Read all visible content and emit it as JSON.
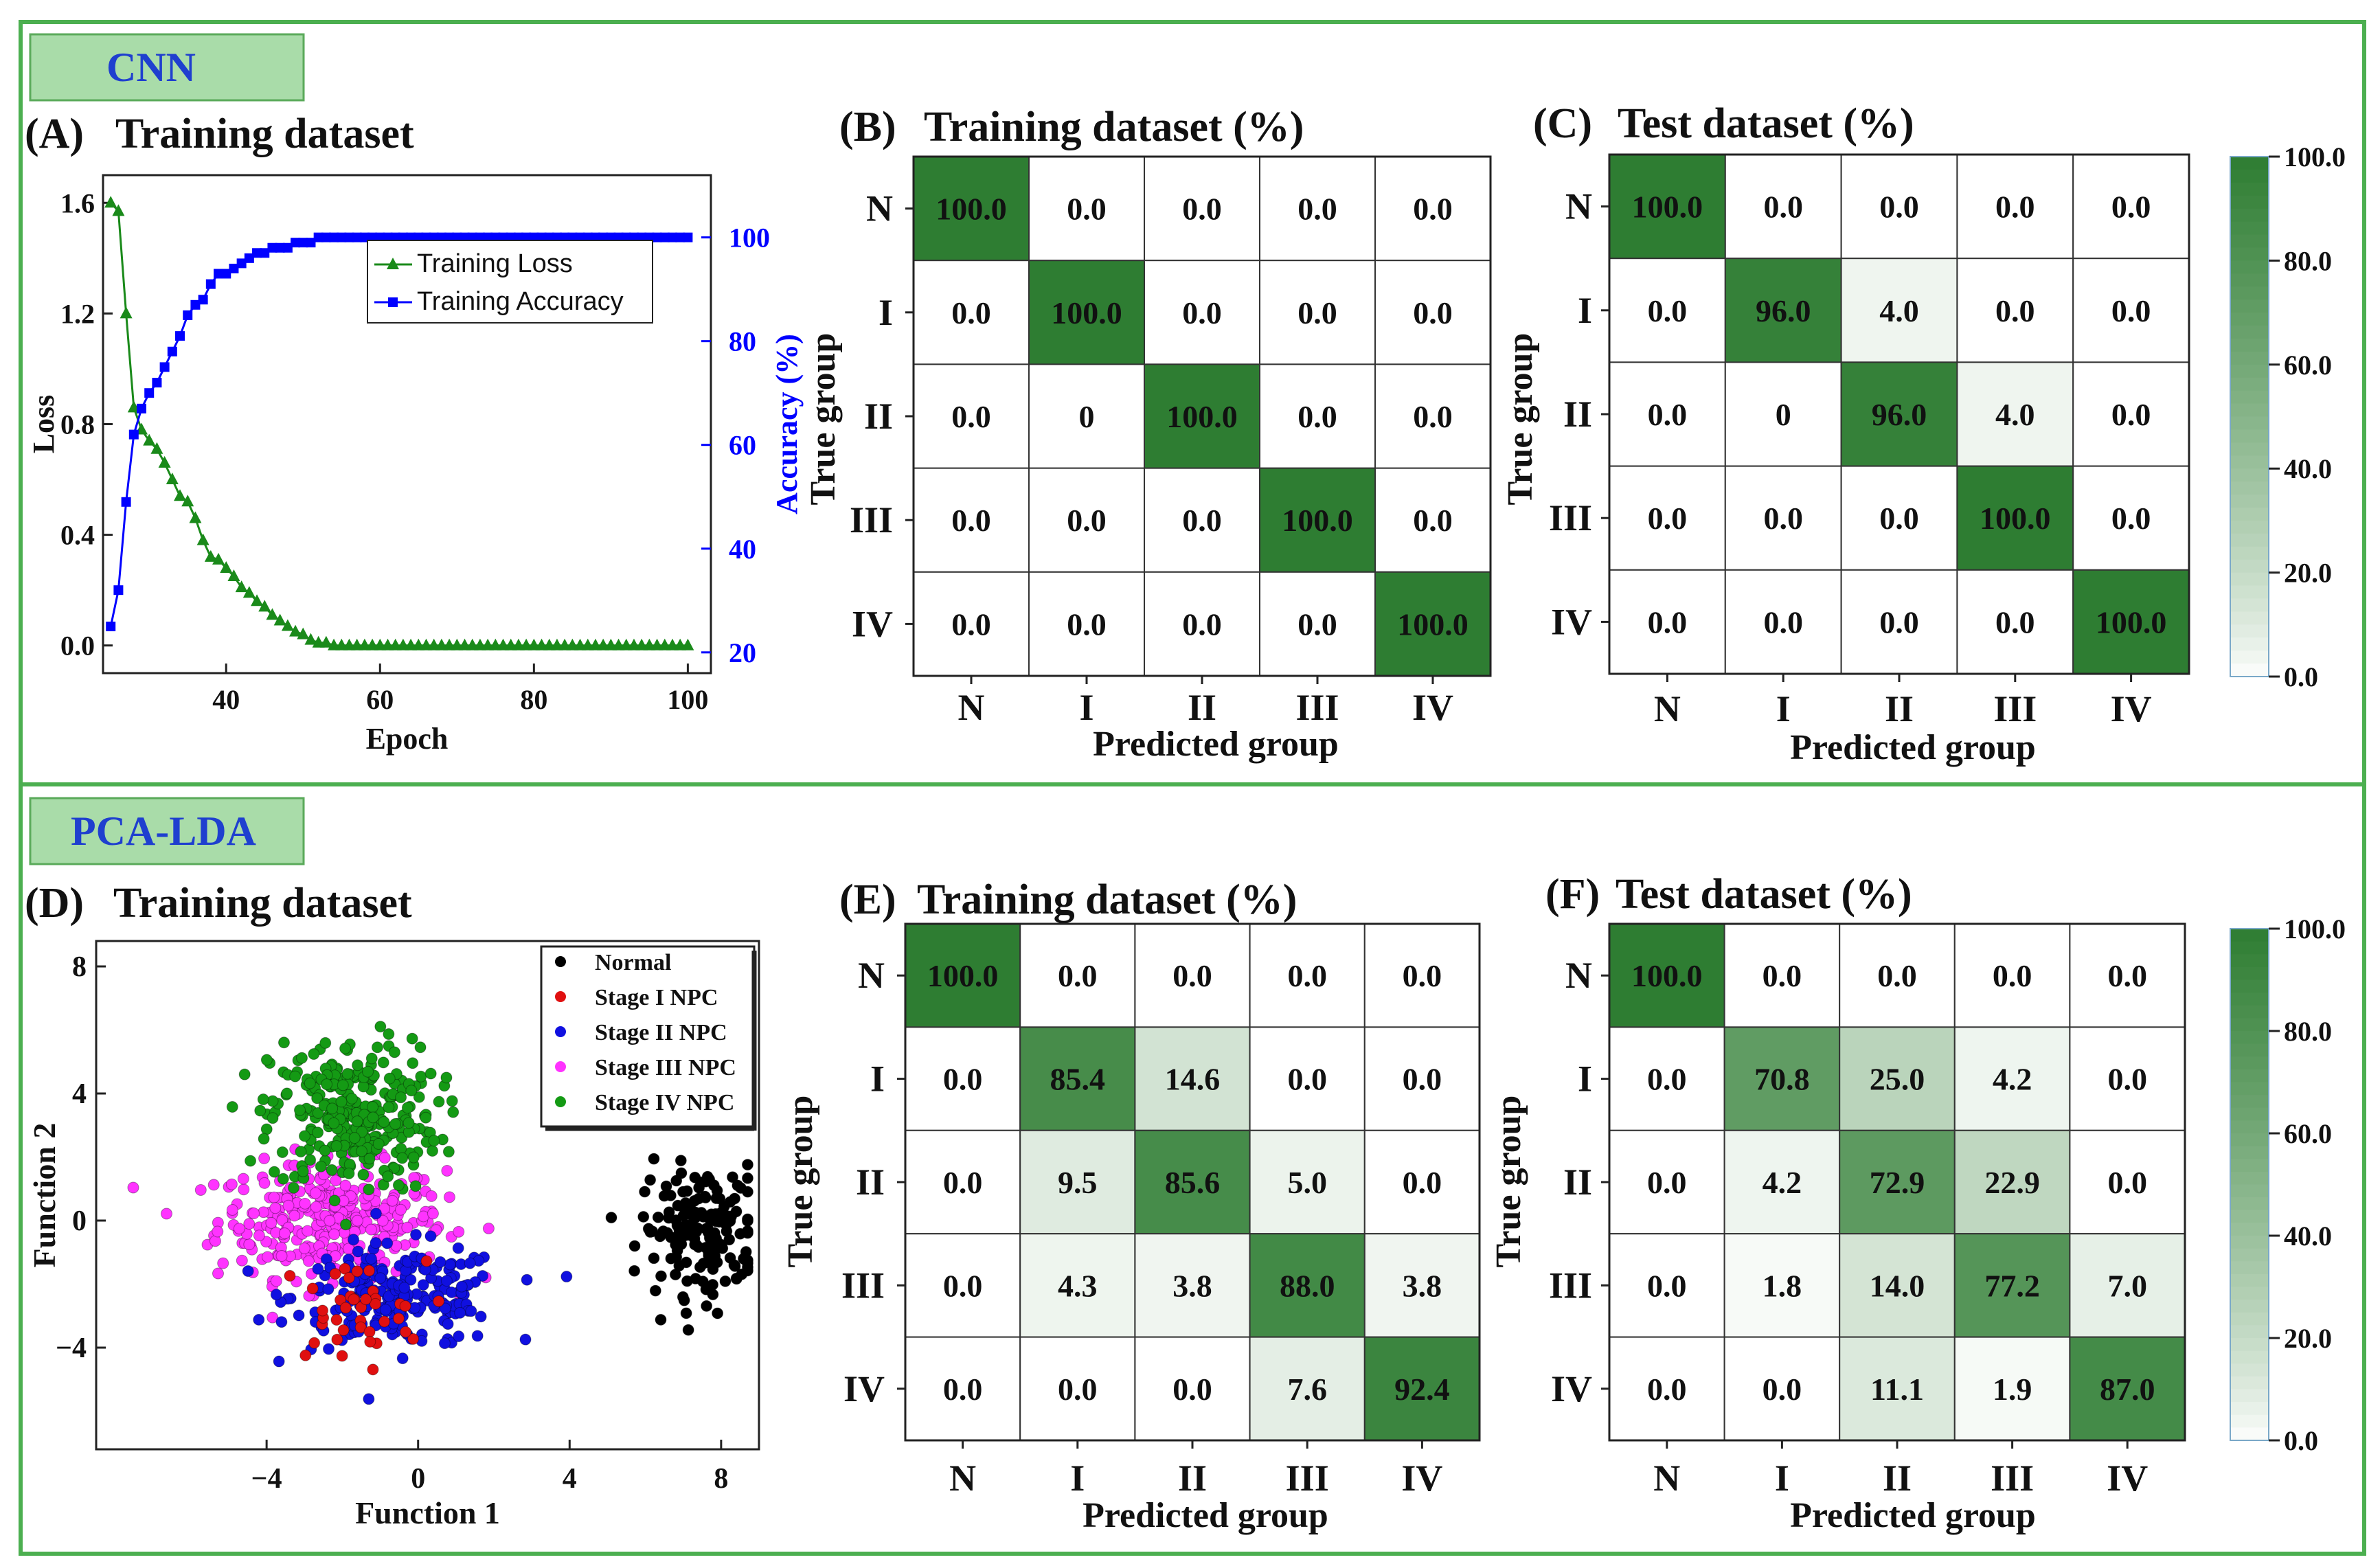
{
  "colors": {
    "frame": "#4caf50",
    "section_tab_bg": "#a9dca9",
    "section_tab_text": "#1f3fcf",
    "loss": "#1a8a1a",
    "accuracy": "#0000ff",
    "heat_max": "#2e7d32",
    "heat_min": "#ffffff",
    "normal": "#000000",
    "stage1": "#e01010",
    "stage2": "#1010e0",
    "stage3": "#ff33ff",
    "stage4": "#149a14"
  },
  "sections": {
    "cnn": {
      "label": "CNN"
    },
    "pcalda": {
      "label": "PCA-LDA"
    }
  },
  "groups": [
    "N",
    "I",
    "II",
    "III",
    "IV"
  ],
  "axis_titles": {
    "true_group": "True group",
    "predicted_group": "Predicted group"
  },
  "colorbar": {
    "ticks": [
      "100.0",
      "80.0",
      "60.0",
      "40.0",
      "20.0",
      "0.0"
    ]
  },
  "chart_data": [
    {
      "id": "A",
      "type": "line",
      "panel_label": "(A)",
      "title": "Training dataset",
      "xlabel": "Epoch",
      "ylabel": "Loss",
      "y2label": "Accuracy (%)",
      "xlim": [
        24,
        103
      ],
      "ylim": [
        -0.1,
        1.7
      ],
      "y2lim": [
        16,
        112
      ],
      "xticks": [
        40,
        60,
        80,
        100
      ],
      "yticks": [
        0.0,
        0.4,
        0.8,
        1.2,
        1.6
      ],
      "ytick_labels": [
        "0.0",
        "0.4",
        "0.8",
        "1.2",
        "1.6"
      ],
      "y2ticks": [
        20,
        40,
        60,
        80,
        100
      ],
      "legend": [
        "Training Loss",
        "Training Accuracy"
      ],
      "series": [
        {
          "name": "Training Loss",
          "axis": "left",
          "marker": "triangle",
          "x": [
            25,
            26,
            27,
            28,
            29,
            30,
            31,
            32,
            33,
            34,
            35,
            36,
            37,
            38,
            39,
            40,
            41,
            42,
            43,
            44,
            45,
            46,
            47,
            48,
            49,
            50,
            51,
            52,
            53,
            54,
            55,
            56,
            57,
            58,
            59,
            60,
            61,
            62,
            63,
            64,
            65,
            66,
            67,
            68,
            69,
            70,
            71,
            72,
            73,
            74,
            75,
            76,
            77,
            78,
            79,
            80,
            81,
            82,
            83,
            84,
            85,
            86,
            87,
            88,
            89,
            90,
            91,
            92,
            93,
            94,
            95,
            96,
            97,
            98,
            99,
            100
          ],
          "y": [
            1.6,
            1.57,
            1.2,
            0.86,
            0.78,
            0.74,
            0.71,
            0.66,
            0.6,
            0.54,
            0.52,
            0.46,
            0.38,
            0.32,
            0.31,
            0.28,
            0.25,
            0.21,
            0.19,
            0.16,
            0.14,
            0.11,
            0.09,
            0.07,
            0.05,
            0.04,
            0.02,
            0.01,
            0.01,
            0.0,
            0.0,
            0.0,
            0.0,
            0.0,
            0.0,
            0.0,
            0.0,
            0.0,
            0.0,
            0.0,
            0.0,
            0.0,
            0.0,
            0.0,
            0.0,
            0.0,
            0.0,
            0.0,
            0.0,
            0.0,
            0.0,
            0.0,
            0.0,
            0.0,
            0.0,
            0.0,
            0.0,
            0.0,
            0.0,
            0.0,
            0.0,
            0.0,
            0.0,
            0.0,
            0.0,
            0.0,
            0.0,
            0.0,
            0.0,
            0.0,
            0.0,
            0.0,
            0.0,
            0.0,
            0.0,
            0.0
          ]
        },
        {
          "name": "Training Accuracy",
          "axis": "right",
          "marker": "square",
          "x": [
            25,
            26,
            27,
            28,
            29,
            30,
            31,
            32,
            33,
            34,
            35,
            36,
            37,
            38,
            39,
            40,
            41,
            42,
            43,
            44,
            45,
            46,
            47,
            48,
            49,
            50,
            51,
            52,
            53,
            54,
            55,
            56,
            57,
            58,
            59,
            60,
            61,
            62,
            63,
            64,
            65,
            66,
            67,
            68,
            69,
            70,
            71,
            72,
            73,
            74,
            75,
            76,
            77,
            78,
            79,
            80,
            81,
            82,
            83,
            84,
            85,
            86,
            87,
            88,
            89,
            90,
            91,
            92,
            93,
            94,
            95,
            96,
            97,
            98,
            99,
            100
          ],
          "y": [
            25,
            32,
            49,
            62,
            67,
            70,
            72,
            75,
            78,
            81,
            85,
            87,
            88,
            91,
            93,
            93,
            94,
            95,
            96,
            97,
            97,
            98,
            98,
            98,
            99,
            99,
            99,
            100,
            100,
            100,
            100,
            100,
            100,
            100,
            100,
            100,
            100,
            100,
            100,
            100,
            100,
            100,
            100,
            100,
            100,
            100,
            100,
            100,
            100,
            100,
            100,
            100,
            100,
            100,
            100,
            100,
            100,
            100,
            100,
            100,
            100,
            100,
            100,
            100,
            100,
            100,
            100,
            100,
            100,
            100,
            100,
            100,
            100,
            100,
            100,
            100
          ]
        }
      ]
    },
    {
      "id": "B",
      "type": "heatmap",
      "panel_label": "(B)",
      "title": "Training dataset (%)",
      "values": [
        [
          "100.0",
          "0.0",
          "0.0",
          "0.0",
          "0.0"
        ],
        [
          "0.0",
          "100.0",
          "0.0",
          "0.0",
          "0.0"
        ],
        [
          "0.0",
          "0",
          "100.0",
          "0.0",
          "0.0"
        ],
        [
          "0.0",
          "0.0",
          "0.0",
          "100.0",
          "0.0"
        ],
        [
          "0.0",
          "0.0",
          "0.0",
          "0.0",
          "100.0"
        ]
      ]
    },
    {
      "id": "C",
      "type": "heatmap",
      "panel_label": "(C)",
      "title": "Test dataset (%)",
      "values": [
        [
          "100.0",
          "0.0",
          "0.0",
          "0.0",
          "0.0"
        ],
        [
          "0.0",
          "96.0",
          "4.0",
          "0.0",
          "0.0"
        ],
        [
          "0.0",
          "0",
          "96.0",
          "4.0",
          "0.0"
        ],
        [
          "0.0",
          "0.0",
          "0.0",
          "100.0",
          "0.0"
        ],
        [
          "0.0",
          "0.0",
          "0.0",
          "0.0",
          "100.0"
        ]
      ]
    },
    {
      "id": "D",
      "type": "scatter",
      "panel_label": "(D)",
      "title": "Training dataset",
      "xlabel": "Function 1",
      "ylabel": "Function 2",
      "xlim": [
        -8.5,
        9
      ],
      "ylim": [
        -7.2,
        8.8
      ],
      "xticks": [
        -4,
        0,
        4,
        8
      ],
      "yticks": [
        -4,
        0,
        4,
        8
      ],
      "legend": [
        "Normal",
        "Stage I NPC",
        "Stage II NPC",
        "Stage III NPC",
        "Stage IV NPC"
      ],
      "clusters": [
        {
          "name": "Normal",
          "center": [
            7.5,
            -0.3
          ],
          "spread": [
            0.8,
            1.0
          ],
          "n": 170
        },
        {
          "name": "Stage I NPC",
          "center": [
            -1.8,
            -2.9
          ],
          "spread": [
            1.0,
            0.8
          ],
          "n": 40
        },
        {
          "name": "Stage II NPC",
          "center": [
            -0.5,
            -2.4
          ],
          "spread": [
            1.4,
            0.8
          ],
          "n": 220
        },
        {
          "name": "Stage III NPC",
          "center": [
            -2.3,
            0.0
          ],
          "spread": [
            1.5,
            0.9
          ],
          "n": 330
        },
        {
          "name": "Stage IV NPC",
          "center": [
            -1.7,
            3.3
          ],
          "spread": [
            1.1,
            1.2
          ],
          "n": 300
        }
      ]
    },
    {
      "id": "E",
      "type": "heatmap",
      "panel_label": "(E)",
      "title": "Training dataset (%)",
      "values": [
        [
          "100.0",
          "0.0",
          "0.0",
          "0.0",
          "0.0"
        ],
        [
          "0.0",
          "85.4",
          "14.6",
          "0.0",
          "0.0"
        ],
        [
          "0.0",
          "9.5",
          "85.6",
          "5.0",
          "0.0"
        ],
        [
          "0.0",
          "4.3",
          "3.8",
          "88.0",
          "3.8"
        ],
        [
          "0.0",
          "0.0",
          "0.0",
          "7.6",
          "92.4"
        ]
      ]
    },
    {
      "id": "F",
      "type": "heatmap",
      "panel_label": "(F)",
      "title": "Test dataset (%)",
      "values": [
        [
          "100.0",
          "0.0",
          "0.0",
          "0.0",
          "0.0"
        ],
        [
          "0.0",
          "70.8",
          "25.0",
          "4.2",
          "0.0"
        ],
        [
          "0.0",
          "4.2",
          "72.9",
          "22.9",
          "0.0"
        ],
        [
          "0.0",
          "1.8",
          "14.0",
          "77.2",
          "7.0"
        ],
        [
          "0.0",
          "0.0",
          "11.1",
          "1.9",
          "87.0"
        ]
      ]
    }
  ]
}
